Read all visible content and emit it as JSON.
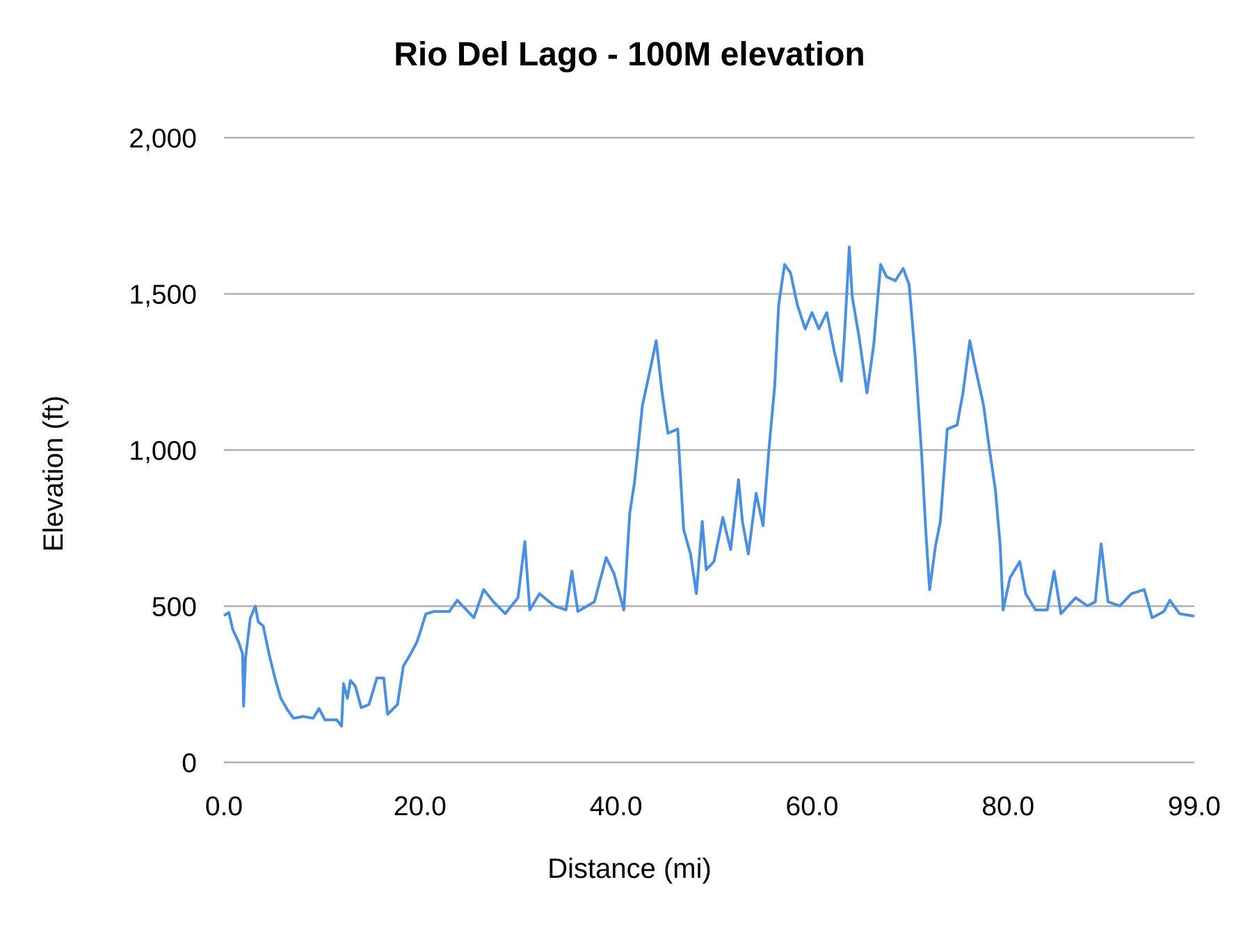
{
  "chart_data": {
    "type": "line",
    "title": "Rio Del Lago - 100M elevation",
    "xlabel": "Distance (mi)",
    "ylabel": "Elevation (ft)",
    "xlim": [
      0,
      99
    ],
    "ylim": [
      0,
      2000
    ],
    "x_ticks": [
      0,
      20,
      40,
      60,
      80,
      99
    ],
    "x_tick_labels": [
      "0.0",
      "20.0",
      "40.0",
      "60.0",
      "80.0",
      "99.0"
    ],
    "y_ticks": [
      0,
      500,
      1000,
      1500,
      2000
    ],
    "y_tick_labels": [
      "0",
      "500",
      "1,000",
      "1,500",
      "2,000"
    ],
    "grid": "horizontal",
    "legend": "none",
    "line_color": "#4a90e2",
    "grid_color": "#b0b0b0",
    "series": [
      {
        "x": [
          0,
          0.5,
          0.9,
          1.5,
          1.9,
          2.0,
          2.2,
          2.7,
          3.2,
          3.5,
          4.0,
          4.6,
          5.2,
          5.8,
          6.5,
          7.1,
          8.1,
          9.1,
          9.7,
          10.3,
          11.5,
          12.0,
          12.2,
          12.6,
          12.9,
          13.4,
          14.0,
          14.8,
          15.6,
          16.3,
          16.7,
          17.7,
          18.3,
          18.9,
          19.7,
          20.6,
          21.4,
          23.0,
          23.8,
          25.5,
          26.5,
          27.5,
          28.7,
          30.0,
          30.7,
          31.2,
          32.2,
          33.7,
          34.9,
          35.5,
          36.1,
          37.8,
          39.0,
          39.8,
          40.8,
          41.4,
          41.9,
          42.7,
          43.5,
          44.1,
          44.7,
          45.3,
          46.3,
          46.9,
          47.6,
          48.2,
          48.8,
          49.2,
          50.0,
          50.9,
          51.7,
          52.5,
          52.9,
          53.5,
          54.3,
          55.0,
          55.6,
          56.2,
          56.6,
          57.2,
          57.8,
          58.5,
          59.3,
          60.0,
          60.7,
          61.5,
          62.3,
          63.0,
          63.3,
          63.8,
          64.1,
          64.8,
          65.6,
          66.3,
          67.0,
          67.6,
          68.5,
          69.3,
          69.9,
          70.5,
          71.2,
          71.6,
          72.0,
          72.6,
          73.1,
          73.8,
          74.8,
          75.4,
          76.1,
          76.6,
          77.5,
          78.1,
          78.7,
          79.2,
          79.5,
          80.2,
          81.2,
          81.8,
          82.8,
          84.0,
          84.7,
          85.4,
          86.9,
          88.1,
          88.9,
          89.5,
          90.2,
          91.4,
          92.6,
          93.9,
          94.7,
          95.9,
          96.5,
          97.5,
          99.0
        ],
        "y": [
          470,
          480,
          425,
          385,
          347,
          180,
          335,
          463,
          500,
          450,
          437,
          347,
          270,
          205,
          167,
          141,
          147,
          141,
          172,
          136,
          136,
          116,
          252,
          205,
          262,
          244,
          175,
          185,
          270,
          270,
          154,
          185,
          308,
          339,
          386,
          475,
          483,
          483,
          519,
          463,
          553,
          514,
          476,
          527,
          707,
          488,
          540,
          501,
          488,
          612,
          483,
          514,
          656,
          604,
          488,
          797,
          900,
          1144,
          1260,
          1350,
          1183,
          1054,
          1067,
          745,
          668,
          540,
          771,
          617,
          643,
          784,
          681,
          905,
          771,
          668,
          861,
          758,
          1003,
          1208,
          1465,
          1594,
          1568,
          1465,
          1388,
          1440,
          1388,
          1440,
          1311,
          1221,
          1362,
          1650,
          1491,
          1362,
          1183,
          1337,
          1594,
          1555,
          1542,
          1581,
          1530,
          1311,
          977,
          745,
          553,
          694,
          771,
          1067,
          1080,
          1183,
          1350,
          1272,
          1144,
          1003,
          874,
          694,
          488,
          591,
          643,
          540,
          488,
          488,
          612,
          476,
          527,
          501,
          514,
          699,
          514,
          501,
          540,
          553,
          463,
          483,
          519,
          476,
          468
        ]
      }
    ]
  }
}
